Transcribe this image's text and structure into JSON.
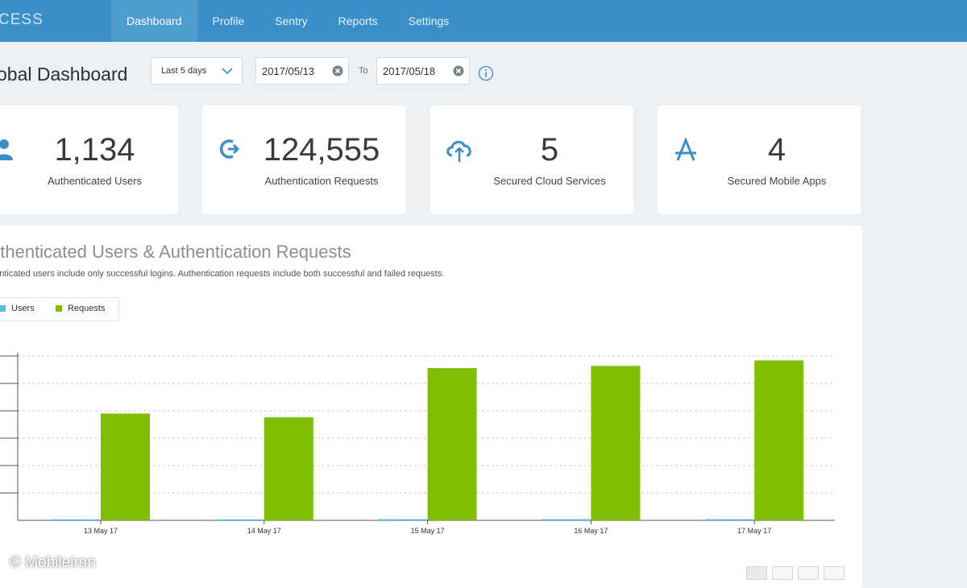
{
  "app": {
    "brand": "CESS"
  },
  "nav": [
    {
      "label": "Dashboard",
      "active": true
    },
    {
      "label": "Profile"
    },
    {
      "label": "Sentry"
    },
    {
      "label": "Reports"
    },
    {
      "label": "Settings"
    }
  ],
  "header": {
    "title": "obal Dashboard",
    "range_select": "Last 5 days",
    "from_date": "2017/05/13",
    "to_label": "To",
    "to_date": "2017/05/18"
  },
  "stats": [
    {
      "value": "1,134",
      "label": "Authenticated Users",
      "icon": "user-icon"
    },
    {
      "value": "124,555",
      "label": "Authentication Requests",
      "icon": "login-arrow-icon"
    },
    {
      "value": "5",
      "label": "Secured Cloud Services",
      "icon": "cloud-icon"
    },
    {
      "value": "4",
      "label": "Secured Mobile Apps",
      "icon": "app-store-icon"
    }
  ],
  "chart_panel": {
    "title": "uthenticated Users & Authentication Requests",
    "subtitle": "henticated users include only successful logins. Authentication requests include both successful and failed requests.",
    "legend": {
      "users": "Users",
      "requests": "Requests"
    }
  },
  "colors": {
    "accent": "#3a8fc8",
    "users": "#5bbde4",
    "requests": "#7fbf00"
  },
  "chart_data": {
    "type": "bar",
    "categories": [
      "13 May 17",
      "14 May 17",
      "15 May 17",
      "16 May 17",
      "17 May 17"
    ],
    "series": [
      {
        "name": "Users",
        "values": [
          180,
          180,
          220,
          210,
          210
        ]
      },
      {
        "name": "Requests",
        "values": [
          19500,
          18800,
          27800,
          28200,
          29200
        ]
      }
    ],
    "ylim": [
      0,
      30000
    ],
    "grid": true,
    "legend": "top-left"
  },
  "footer": {
    "watermark": "© Mobileiron"
  }
}
